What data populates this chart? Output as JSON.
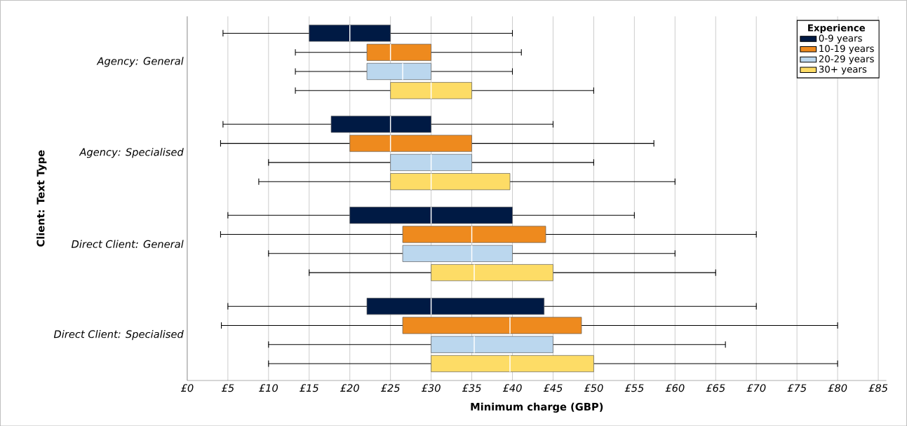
{
  "chart_data": {
    "type": "box",
    "orientation": "horizontal",
    "xlabel": "Minimum charge (GBP)",
    "ylabel": "Client: Text Type",
    "legend_title": "Experience",
    "legend": "top right",
    "grid": "x",
    "categories": [
      "Agency: General",
      "Agency: Specialised",
      "Direct Client: General",
      "Direct Client: Specialised"
    ],
    "xlim": [
      0,
      86
    ],
    "xticks": [
      {
        "value": 0,
        "label": "£0"
      },
      {
        "value": 5,
        "label": "£5"
      },
      {
        "value": 10,
        "label": "£10"
      },
      {
        "value": 15,
        "label": "£15"
      },
      {
        "value": 20,
        "label": "£20"
      },
      {
        "value": 25,
        "label": "£25"
      },
      {
        "value": 30,
        "label": "£30"
      },
      {
        "value": 35,
        "label": "£35"
      },
      {
        "value": 40,
        "label": "£40"
      },
      {
        "value": 45,
        "label": "£45"
      },
      {
        "value": 50,
        "label": "£50"
      },
      {
        "value": 55,
        "label": "£55"
      },
      {
        "value": 60,
        "label": "£60"
      },
      {
        "value": 65,
        "label": "£65"
      },
      {
        "value": 70,
        "label": "£70"
      },
      {
        "value": 75,
        "label": "£75"
      },
      {
        "value": 80,
        "label": "£80"
      },
      {
        "value": 85,
        "label": "£85"
      }
    ],
    "series": [
      {
        "name": "0-9 years",
        "color": "#001a44",
        "boxes": [
          {
            "low": 4.4,
            "q1": 15,
            "median": 20,
            "q3": 25,
            "high": 40
          },
          {
            "low": 4.4,
            "q1": 17.7,
            "median": 25,
            "q3": 30,
            "high": 45
          },
          {
            "low": 5,
            "q1": 20,
            "median": 30,
            "q3": 40,
            "high": 55
          },
          {
            "low": 5,
            "q1": 22.1,
            "median": 30,
            "q3": 43.9,
            "high": 70
          }
        ]
      },
      {
        "name": "10-19 years",
        "color": "#ee8a1e",
        "boxes": [
          {
            "low": 13.3,
            "q1": 22.1,
            "median": 25,
            "q3": 30,
            "high": 41.1
          },
          {
            "low": 4.1,
            "q1": 20,
            "median": 25,
            "q3": 35,
            "high": 57.4
          },
          {
            "low": 4.1,
            "q1": 26.5,
            "median": 35,
            "q3": 44.1,
            "high": 70
          },
          {
            "low": 4.2,
            "q1": 26.5,
            "median": 39.7,
            "q3": 48.5,
            "high": 80
          }
        ]
      },
      {
        "name": "20-29 years",
        "color": "#bbd7ee",
        "boxes": [
          {
            "low": 13.3,
            "q1": 22.1,
            "median": 26.5,
            "q3": 30,
            "high": 40
          },
          {
            "low": 10,
            "q1": 25,
            "median": 30,
            "q3": 35,
            "high": 50
          },
          {
            "low": 10,
            "q1": 26.5,
            "median": 35,
            "q3": 40,
            "high": 60
          },
          {
            "low": 10,
            "q1": 30,
            "median": 35.3,
            "q3": 45,
            "high": 66.2
          }
        ]
      },
      {
        "name": "30+ years",
        "color": "#fddc66",
        "boxes": [
          {
            "low": 13.3,
            "q1": 25,
            "median": 30,
            "q3": 35,
            "high": 50
          },
          {
            "low": 8.8,
            "q1": 25,
            "median": 30,
            "q3": 39.7,
            "high": 60
          },
          {
            "low": 15,
            "q1": 30,
            "median": 35.3,
            "q3": 45,
            "high": 65
          },
          {
            "low": 10,
            "q1": 30,
            "median": 39.7,
            "q3": 50,
            "high": 80
          }
        ]
      }
    ]
  }
}
